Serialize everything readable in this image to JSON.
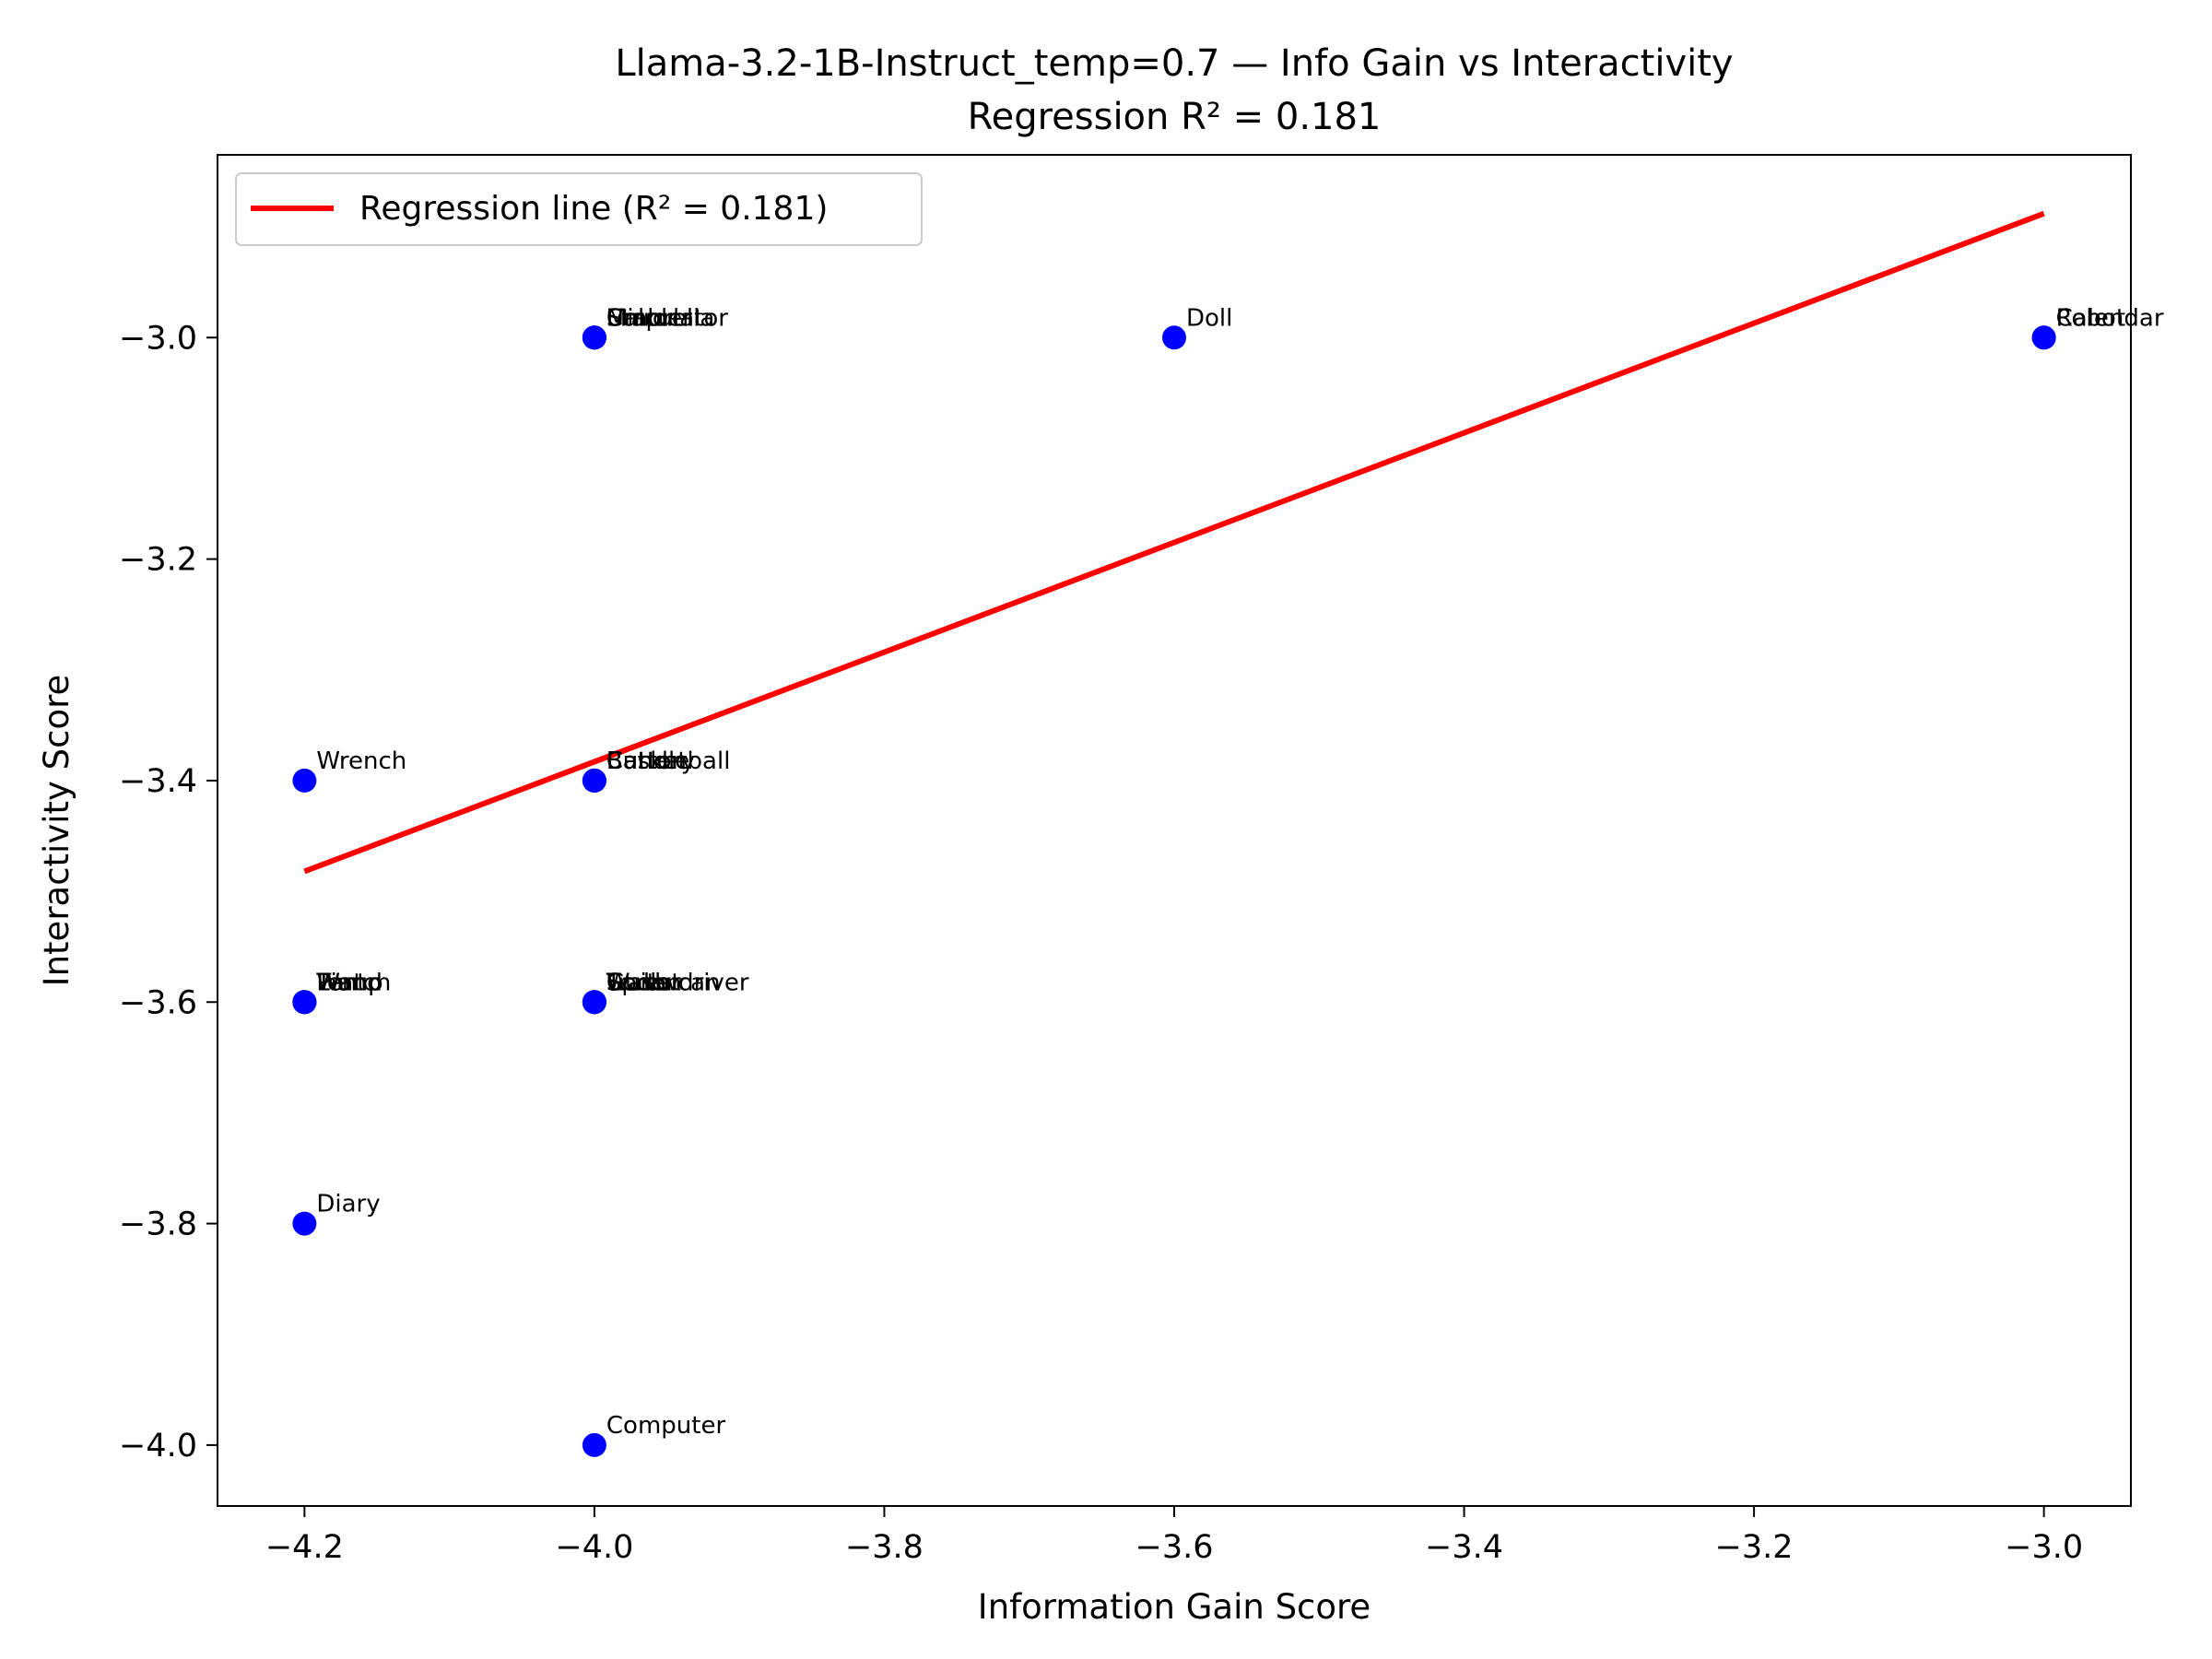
{
  "chart_data": {
    "type": "scatter",
    "title": "Llama-3.2-1B-Instruct_temp=0.7 — Info Gain vs Interactivity",
    "subtitle": "Regression R² = 0.181",
    "xlabel": "Information Gain Score",
    "ylabel": "Interactivity Score",
    "xlim": [
      -4.26,
      -2.94
    ],
    "ylim": [
      -4.055,
      -2.835
    ],
    "x_ticks": [
      -4.2,
      -4.0,
      -3.8,
      -3.6,
      -3.4,
      -3.2,
      -3.0
    ],
    "x_tick_labels": [
      "−4.2",
      "−4.0",
      "−3.8",
      "−3.6",
      "−3.4",
      "−3.2",
      "−3.0"
    ],
    "y_ticks": [
      -4.0,
      -3.8,
      -3.6,
      -3.4,
      -3.2,
      -3.0
    ],
    "y_tick_labels": [
      "−4.0",
      "−3.8",
      "−3.6",
      "−3.4",
      "−3.2",
      "−3.0"
    ],
    "grid": false,
    "legend_position": "top-left",
    "point_color": "#0000ff",
    "series": [
      {
        "points": [
          {
            "x": -4.0,
            "y": -3.0,
            "label": "Umbrella"
          },
          {
            "x": -4.0,
            "y": -3.0,
            "label": "Mirror"
          },
          {
            "x": -4.0,
            "y": -3.0,
            "label": "Stapler"
          },
          {
            "x": -4.0,
            "y": -3.0,
            "label": "Calculator"
          },
          {
            "x": -3.6,
            "y": -3.0,
            "label": "Doll"
          },
          {
            "x": -3.0,
            "y": -3.0,
            "label": "Robot"
          },
          {
            "x": -3.0,
            "y": -3.0,
            "label": "Calendar"
          },
          {
            "x": -4.2,
            "y": -3.4,
            "label": "Wrench"
          },
          {
            "x": -4.0,
            "y": -3.4,
            "label": "Basketball"
          },
          {
            "x": -4.0,
            "y": -3.4,
            "label": "Battery"
          },
          {
            "x": -4.0,
            "y": -3.4,
            "label": "Button"
          },
          {
            "x": -4.0,
            "y": -3.4,
            "label": "Candle"
          },
          {
            "x": -4.2,
            "y": -3.6,
            "label": "Piano"
          },
          {
            "x": -4.2,
            "y": -3.6,
            "label": "Watch"
          },
          {
            "x": -4.2,
            "y": -3.6,
            "label": "Lamp"
          },
          {
            "x": -4.2,
            "y": -3.6,
            "label": "Tent"
          },
          {
            "x": -4.0,
            "y": -3.6,
            "label": "Screwdriver"
          },
          {
            "x": -4.0,
            "y": -3.6,
            "label": "Trash can"
          },
          {
            "x": -4.0,
            "y": -3.6,
            "label": "Spoon"
          },
          {
            "x": -4.0,
            "y": -3.6,
            "label": "Guitar"
          },
          {
            "x": -4.0,
            "y": -3.6,
            "label": "Wallet"
          },
          {
            "x": -4.2,
            "y": -3.8,
            "label": "Diary"
          },
          {
            "x": -4.0,
            "y": -4.0,
            "label": "Computer"
          }
        ]
      }
    ],
    "regression": {
      "name": "Regression line (R² = 0.181)",
      "color": "#ff0000",
      "x": [
        -4.2,
        -3.0
      ],
      "y": [
        -3.482,
        -2.888
      ]
    }
  }
}
